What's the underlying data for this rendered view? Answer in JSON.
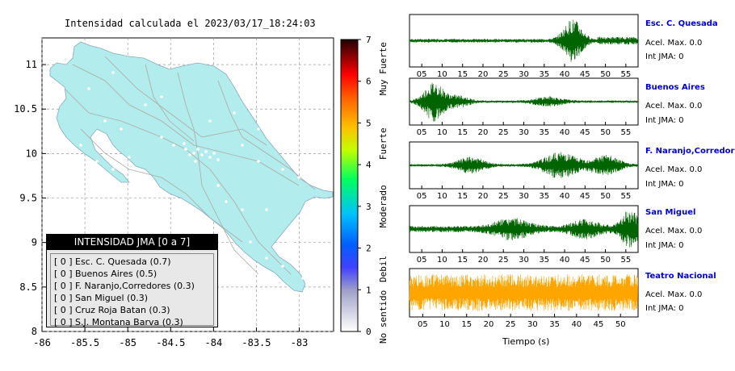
{
  "map": {
    "title": "Intensidad calculada el 2023/03/17_18:24:03",
    "x_ticks": [
      "-86",
      "-85.5",
      "-85",
      "-84.5",
      "-84",
      "-83.5",
      "-83"
    ],
    "y_ticks": [
      "11",
      "10.5",
      "10",
      "9.5",
      "9",
      "8.5",
      "8"
    ],
    "land_color": "#b2ecec",
    "frame_color": "#000000"
  },
  "colorbar": {
    "ticks": [
      "0",
      "1",
      "2",
      "3",
      "4",
      "5",
      "6",
      "7"
    ],
    "labels": [
      "No sentido",
      "Debil",
      "Moderado",
      "Fuerte",
      "Muy Fuerte"
    ]
  },
  "legend": {
    "title": "INTENSIDAD JMA [0 a 7]",
    "rows": [
      {
        "level": "[ 0 ]",
        "text": "Esc. C. Quesada (0.7)"
      },
      {
        "level": "[ 0 ]",
        "text": "Buenos Aires (0.5)"
      },
      {
        "level": "[ 0 ]",
        "text": "F. Naranjo,Corredores (0.3)"
      },
      {
        "level": "[ 0 ]",
        "text": "San Miguel (0.3)"
      },
      {
        "level": "[ 0 ]",
        "text": "Cruz Roja Batan (0.3)"
      },
      {
        "level": "[ 0 ]",
        "text": "S.J. Montana Barva (0.3)"
      }
    ]
  },
  "stations": [
    {
      "name": "Esc. C. Quesada",
      "acel": "Acel. Max. 0.0",
      "jma": "Int JMA: 0",
      "color": "#006400",
      "ticks": [
        "05",
        "10",
        "15",
        "20",
        "25",
        "30",
        "35",
        "40",
        "45",
        "50",
        "55"
      ]
    },
    {
      "name": "Buenos Aires",
      "acel": "Acel. Max. 0.0",
      "jma": "Int JMA: 0",
      "color": "#006400",
      "ticks": [
        "05",
        "10",
        "15",
        "20",
        "25",
        "30",
        "35",
        "40",
        "45",
        "50",
        "55"
      ]
    },
    {
      "name": "F. Naranjo,Corredores",
      "acel": "Acel. Max. 0.0",
      "jma": "Int JMA: 0",
      "color": "#006400",
      "ticks": [
        "05",
        "10",
        "15",
        "20",
        "25",
        "30",
        "35",
        "40",
        "45",
        "50",
        "55"
      ]
    },
    {
      "name": "San Miguel",
      "acel": "Acel. Max. 0.0",
      "jma": "Int JMA: 0",
      "color": "#006400",
      "ticks": [
        "05",
        "10",
        "15",
        "20",
        "25",
        "30",
        "35",
        "40",
        "45",
        "50",
        "55"
      ]
    },
    {
      "name": "Teatro Nacional",
      "acel": "Acel. Max. 0.0",
      "jma": "Int JMA: 0",
      "color": "#ffa500",
      "ticks": [
        "05",
        "10",
        "15",
        "20",
        "25",
        "30",
        "35",
        "40",
        "45",
        "50"
      ]
    }
  ],
  "x_title": "Tiempo (s)",
  "chart_data": [
    {
      "type": "heatmap",
      "title": "Intensidad calculada el 2023/03/17_18:24:03",
      "xlim": [
        -86,
        -82.6
      ],
      "ylim": [
        8,
        11.3
      ],
      "colorbar": {
        "min": 0,
        "max": 7,
        "labels": [
          "No sentido",
          "Debil",
          "Moderado",
          "Fuerte",
          "Muy Fuerte"
        ]
      },
      "legend": [
        {
          "name": "Esc. C. Quesada",
          "intensity": 0.7
        },
        {
          "name": "Buenos Aires",
          "intensity": 0.5
        },
        {
          "name": "F. Naranjo,Corredores",
          "intensity": 0.3
        },
        {
          "name": "San Miguel",
          "intensity": 0.3
        },
        {
          "name": "Cruz Roja Batan",
          "intensity": 0.3
        },
        {
          "name": "S.J. Montana Barva",
          "intensity": 0.3
        }
      ]
    },
    {
      "type": "line",
      "xlabel": "Tiempo (s)",
      "series": [
        {
          "name": "Esc. C. Quesada",
          "peak_time": 42,
          "xlim": [
            2,
            58
          ]
        },
        {
          "name": "Buenos Aires",
          "peak_time": 8,
          "xlim": [
            2,
            58
          ]
        },
        {
          "name": "F. Naranjo,Corredores",
          "peak_time": 40,
          "xlim": [
            2,
            58
          ]
        },
        {
          "name": "San Miguel",
          "peak_time": 56,
          "xlim": [
            2,
            58
          ]
        },
        {
          "name": "Teatro Nacional",
          "peak_time": 0,
          "xlim": [
            2,
            54
          ]
        }
      ]
    }
  ]
}
